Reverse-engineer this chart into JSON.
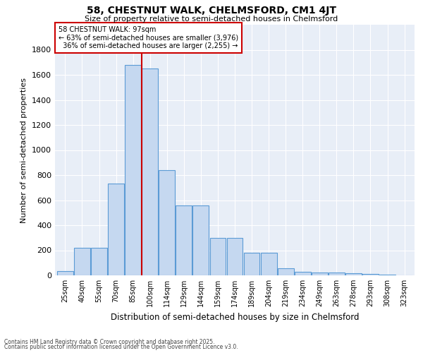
{
  "title1": "58, CHESTNUT WALK, CHELMSFORD, CM1 4JT",
  "title2": "Size of property relative to semi-detached houses in Chelmsford",
  "xlabel": "Distribution of semi-detached houses by size in Chelmsford",
  "ylabel": "Number of semi-detached properties",
  "bar_labels": [
    "25sqm",
    "40sqm",
    "55sqm",
    "70sqm",
    "85sqm",
    "100sqm",
    "114sqm",
    "129sqm",
    "144sqm",
    "159sqm",
    "174sqm",
    "189sqm",
    "204sqm",
    "219sqm",
    "234sqm",
    "249sqm",
    "263sqm",
    "278sqm",
    "293sqm",
    "308sqm",
    "323sqm"
  ],
  "bar_heights": [
    35,
    220,
    220,
    730,
    1680,
    1650,
    840,
    560,
    560,
    300,
    300,
    180,
    180,
    55,
    30,
    25,
    20,
    15,
    10,
    8,
    0
  ],
  "bar_color": "#c5d8f0",
  "bar_edge_color": "#5b9bd5",
  "vline_pos": 4.5,
  "property_sqm": 97,
  "property_name": "58 CHESTNUT WALK",
  "pct_smaller": 63,
  "n_smaller": "3,976",
  "pct_larger": 36,
  "n_larger": "2,255",
  "annotation_box_color": "#cc0000",
  "vline_color": "#cc0000",
  "bg_color": "#e8eef7",
  "footnote1": "Contains HM Land Registry data © Crown copyright and database right 2025.",
  "footnote2": "Contains public sector information licensed under the Open Government Licence v3.0.",
  "ylim": [
    0,
    2000
  ],
  "yticks": [
    0,
    200,
    400,
    600,
    800,
    1000,
    1200,
    1400,
    1600,
    1800
  ]
}
